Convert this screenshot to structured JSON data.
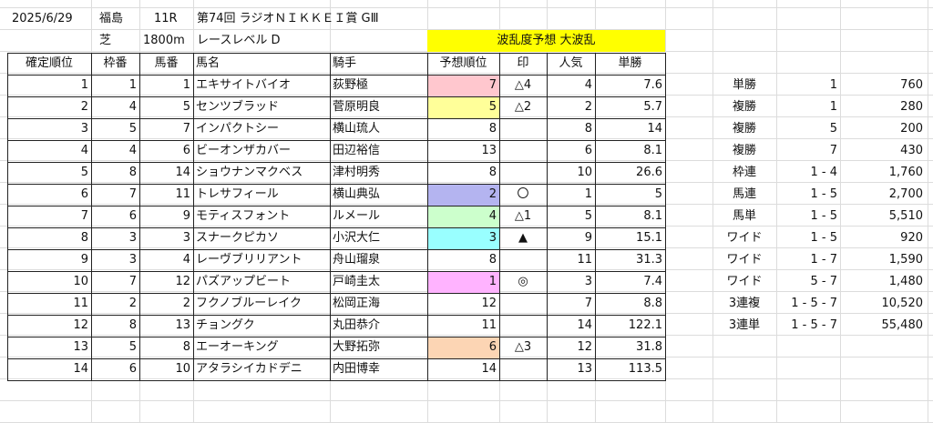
{
  "header": {
    "date": "2025/6/29",
    "venue": "福島",
    "race_no": "11R",
    "race_name": "第74回 ラジオＮＩＫＫＥＩ賞 GⅢ",
    "surface": "芝",
    "distance": "1800m",
    "race_level": "レースレベル D",
    "forecast_banner": "波乱度予想 大波乱"
  },
  "columns": [
    "確定順位",
    "枠番",
    "馬番",
    "馬名",
    "騎手",
    "予想順位",
    "印",
    "人気",
    "単勝"
  ],
  "rows": [
    {
      "pos": "1",
      "waku": "1",
      "uma": "1",
      "name": "エキサイトバイオ",
      "jockey": "荻野極",
      "pred": "7",
      "mark": "△4",
      "pop": "4",
      "odds": "7.6",
      "hl": "#ffc7ce"
    },
    {
      "pos": "2",
      "waku": "4",
      "uma": "5",
      "name": "センツブラッド",
      "jockey": "菅原明良",
      "pred": "5",
      "mark": "△2",
      "pop": "2",
      "odds": "5.7",
      "hl": "#ffff99"
    },
    {
      "pos": "3",
      "waku": "5",
      "uma": "7",
      "name": "インパクトシー",
      "jockey": "横山琉人",
      "pred": "8",
      "mark": "",
      "pop": "8",
      "odds": "14",
      "hl": ""
    },
    {
      "pos": "4",
      "waku": "4",
      "uma": "6",
      "name": "ビーオンザカバー",
      "jockey": "田辺裕信",
      "pred": "13",
      "mark": "",
      "pop": "6",
      "odds": "8.1",
      "hl": ""
    },
    {
      "pos": "5",
      "waku": "8",
      "uma": "14",
      "name": "ショウナンマクベス",
      "jockey": "津村明秀",
      "pred": "8",
      "mark": "",
      "pop": "10",
      "odds": "26.6",
      "hl": ""
    },
    {
      "pos": "6",
      "waku": "7",
      "uma": "11",
      "name": "トレサフィール",
      "jockey": "横山典弘",
      "pred": "2",
      "mark": "〇",
      "pop": "1",
      "odds": "5",
      "hl": "#b4b4f0"
    },
    {
      "pos": "7",
      "waku": "6",
      "uma": "9",
      "name": "モティスフォント",
      "jockey": "ルメール",
      "pred": "4",
      "mark": "△1",
      "pop": "5",
      "odds": "8.1",
      "hl": "#ccffcc"
    },
    {
      "pos": "8",
      "waku": "3",
      "uma": "3",
      "name": "スナークピカソ",
      "jockey": "小沢大仁",
      "pred": "3",
      "mark": "▲",
      "pop": "9",
      "odds": "15.1",
      "hl": "#99ffff"
    },
    {
      "pos": "9",
      "waku": "3",
      "uma": "4",
      "name": "レーヴブリリアント",
      "jockey": "舟山瑠泉",
      "pred": "8",
      "mark": "",
      "pop": "11",
      "odds": "31.3",
      "hl": ""
    },
    {
      "pos": "10",
      "waku": "7",
      "uma": "12",
      "name": "パズアップビート",
      "jockey": "戸崎圭太",
      "pred": "1",
      "mark": "◎",
      "pop": "3",
      "odds": "7.4",
      "hl": "#ffb3ff"
    },
    {
      "pos": "11",
      "waku": "2",
      "uma": "2",
      "name": "フクノブルーレイク",
      "jockey": "松岡正海",
      "pred": "12",
      "mark": "",
      "pop": "7",
      "odds": "8.8",
      "hl": ""
    },
    {
      "pos": "12",
      "waku": "8",
      "uma": "13",
      "name": "チョングク",
      "jockey": "丸田恭介",
      "pred": "11",
      "mark": "",
      "pop": "14",
      "odds": "122.1",
      "hl": ""
    },
    {
      "pos": "13",
      "waku": "5",
      "uma": "8",
      "name": "エーオーキング",
      "jockey": "大野拓弥",
      "pred": "6",
      "mark": "△3",
      "pop": "12",
      "odds": "31.8",
      "hl": "#fcd5b4"
    },
    {
      "pos": "14",
      "waku": "6",
      "uma": "10",
      "name": "アタラシイカドデニ",
      "jockey": "内田博幸",
      "pred": "14",
      "mark": "",
      "pop": "13",
      "odds": "113.5",
      "hl": ""
    }
  ],
  "payouts": [
    {
      "type": "単勝",
      "combo": "1",
      "amount": "760"
    },
    {
      "type": "複勝",
      "combo": "1",
      "amount": "280"
    },
    {
      "type": "複勝",
      "combo": "5",
      "amount": "200"
    },
    {
      "type": "複勝",
      "combo": "7",
      "amount": "430"
    },
    {
      "type": "枠連",
      "combo": "1 - 4",
      "amount": "1,760"
    },
    {
      "type": "馬連",
      "combo": "1 - 5",
      "amount": "2,700"
    },
    {
      "type": "馬単",
      "combo": "1 - 5",
      "amount": "5,510"
    },
    {
      "type": "ワイド",
      "combo": "1 - 5",
      "amount": "920"
    },
    {
      "type": "ワイド",
      "combo": "1 - 7",
      "amount": "1,590"
    },
    {
      "type": "ワイド",
      "combo": "5 - 7",
      "amount": "1,480"
    },
    {
      "type": "3連複",
      "combo": "1 - 5 - 7",
      "amount": "10,520"
    },
    {
      "type": "3連単",
      "combo": "1 - 5 - 7",
      "amount": "55,480"
    }
  ]
}
